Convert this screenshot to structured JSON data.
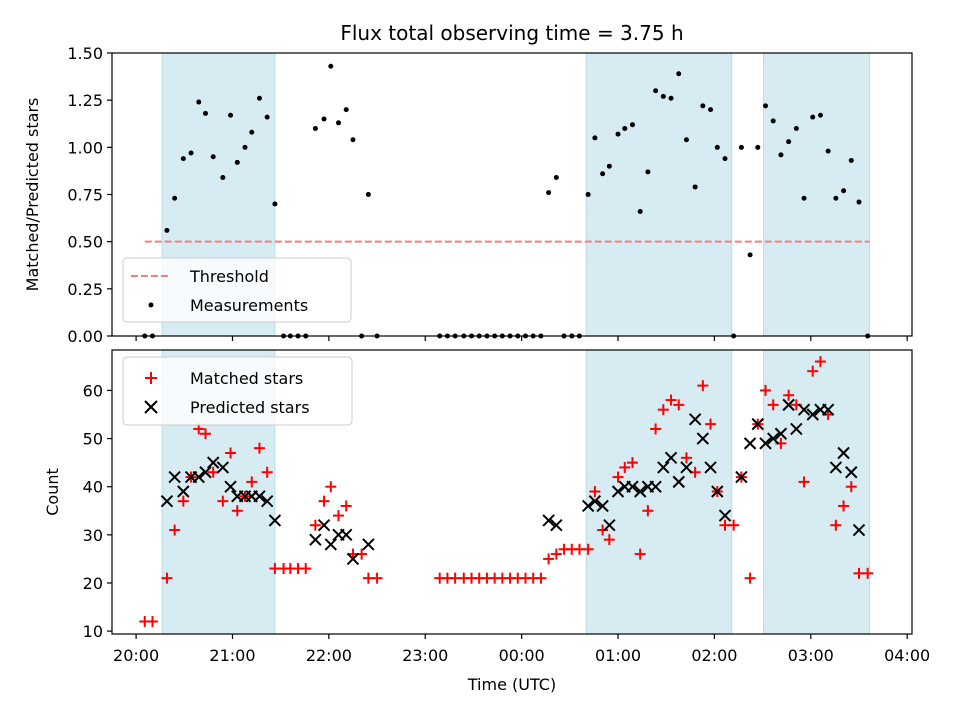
{
  "chart_data": [
    {
      "type": "scatter",
      "title": "Flux total observing time = 3.75 h",
      "xlabel": "",
      "ylabel": "Matched/Predicted stars",
      "ylim": [
        0,
        1.5
      ],
      "yticks": [
        0,
        0.25,
        0.5,
        0.75,
        1.0,
        1.25,
        1.5
      ],
      "ytick_labels": [
        "0.00",
        "0.25",
        "0.50",
        "0.75",
        "1.00",
        "1.25",
        "1.50"
      ],
      "x_unit": "hours since 20:00 UTC",
      "xlim": [
        -0.25,
        8.05
      ],
      "xticks": [
        0,
        1,
        2,
        3,
        4,
        5,
        6,
        7,
        8
      ],
      "grid": false,
      "legend_position": "lower-left",
      "shaded_intervals": [
        [
          0.27,
          1.44
        ],
        [
          4.67,
          6.18
        ],
        [
          6.51,
          7.61
        ]
      ],
      "threshold": {
        "name": "Threshold",
        "value": 0.5,
        "x_range": [
          0.09,
          7.61
        ],
        "color": "#f08080"
      },
      "series": [
        {
          "name": "Measurements",
          "color": "#000000",
          "points": [
            [
              0.09,
              0.0
            ],
            [
              0.17,
              0.0
            ],
            [
              0.32,
              0.56
            ],
            [
              0.4,
              0.73
            ],
            [
              0.49,
              0.94
            ],
            [
              0.57,
              0.97
            ],
            [
              0.65,
              1.24
            ],
            [
              0.72,
              1.18
            ],
            [
              0.8,
              0.95
            ],
            [
              0.9,
              0.84
            ],
            [
              0.98,
              1.17
            ],
            [
              1.05,
              0.92
            ],
            [
              1.13,
              1.0
            ],
            [
              1.2,
              1.08
            ],
            [
              1.28,
              1.26
            ],
            [
              1.36,
              1.16
            ],
            [
              1.44,
              0.7
            ],
            [
              1.53,
              0.0
            ],
            [
              1.6,
              0.0
            ],
            [
              1.68,
              0.0
            ],
            [
              1.76,
              0.0
            ],
            [
              1.86,
              1.1
            ],
            [
              1.95,
              1.15
            ],
            [
              2.02,
              1.43
            ],
            [
              2.1,
              1.13
            ],
            [
              2.18,
              1.2
            ],
            [
              2.25,
              1.04
            ],
            [
              2.34,
              0.0
            ],
            [
              2.41,
              0.75
            ],
            [
              2.5,
              0.0
            ],
            [
              3.15,
              0.0
            ],
            [
              3.23,
              0.0
            ],
            [
              3.31,
              0.0
            ],
            [
              3.4,
              0.0
            ],
            [
              3.48,
              0.0
            ],
            [
              3.56,
              0.0
            ],
            [
              3.64,
              0.0
            ],
            [
              3.72,
              0.0
            ],
            [
              3.8,
              0.0
            ],
            [
              3.88,
              0.0
            ],
            [
              3.96,
              0.0
            ],
            [
              4.04,
              0.0
            ],
            [
              4.12,
              0.0
            ],
            [
              4.2,
              0.0
            ],
            [
              4.28,
              0.76
            ],
            [
              4.36,
              0.84
            ],
            [
              4.44,
              0.0
            ],
            [
              4.52,
              0.0
            ],
            [
              4.6,
              0.0
            ],
            [
              4.69,
              0.75
            ],
            [
              4.76,
              1.05
            ],
            [
              4.84,
              0.86
            ],
            [
              4.91,
              0.9
            ],
            [
              5.0,
              1.07
            ],
            [
              5.07,
              1.1
            ],
            [
              5.15,
              1.12
            ],
            [
              5.23,
              0.66
            ],
            [
              5.31,
              0.87
            ],
            [
              5.39,
              1.3
            ],
            [
              5.47,
              1.27
            ],
            [
              5.55,
              1.26
            ],
            [
              5.63,
              1.39
            ],
            [
              5.71,
              1.04
            ],
            [
              5.8,
              0.79
            ],
            [
              5.88,
              1.22
            ],
            [
              5.96,
              1.2
            ],
            [
              6.03,
              1.0
            ],
            [
              6.11,
              0.94
            ],
            [
              6.2,
              0.0
            ],
            [
              6.28,
              1.0
            ],
            [
              6.37,
              0.43
            ],
            [
              6.45,
              1.0
            ],
            [
              6.53,
              1.22
            ],
            [
              6.61,
              1.14
            ],
            [
              6.69,
              0.96
            ],
            [
              6.77,
              1.03
            ],
            [
              6.85,
              1.1
            ],
            [
              6.93,
              0.73
            ],
            [
              7.02,
              1.16
            ],
            [
              7.1,
              1.17
            ],
            [
              7.18,
              0.98
            ],
            [
              7.26,
              0.73
            ],
            [
              7.34,
              0.77
            ],
            [
              7.42,
              0.93
            ],
            [
              7.5,
              0.71
            ],
            [
              7.59,
              0.0
            ]
          ]
        }
      ]
    },
    {
      "type": "scatter",
      "title": "",
      "xlabel": "Time (UTC)",
      "ylabel": "Count",
      "ylim": [
        9.4,
        68.4
      ],
      "yticks": [
        10,
        20,
        30,
        40,
        50,
        60
      ],
      "ytick_labels": [
        "10",
        "20",
        "30",
        "40",
        "50",
        "60"
      ],
      "x_unit": "hours since 20:00 UTC",
      "xlim": [
        -0.25,
        8.05
      ],
      "xticks": [
        0,
        1,
        2,
        3,
        4,
        5,
        6,
        7,
        8
      ],
      "xtick_labels": [
        "20:00",
        "21:00",
        "22:00",
        "23:00",
        "00:00",
        "01:00",
        "02:00",
        "03:00",
        "04:00"
      ],
      "grid": false,
      "legend_position": "upper-left",
      "shaded_intervals": [
        [
          0.27,
          1.44
        ],
        [
          4.67,
          6.18
        ],
        [
          6.51,
          7.61
        ]
      ],
      "series": [
        {
          "name": "Matched stars",
          "marker": "plus",
          "color": "#ff0000",
          "points": [
            [
              0.09,
              12
            ],
            [
              0.17,
              12
            ],
            [
              0.32,
              21
            ],
            [
              0.4,
              31
            ],
            [
              0.49,
              37
            ],
            [
              0.57,
              42
            ],
            [
              0.65,
              52
            ],
            [
              0.72,
              51
            ],
            [
              0.8,
              43
            ],
            [
              0.9,
              37
            ],
            [
              0.98,
              47
            ],
            [
              1.05,
              35
            ],
            [
              1.13,
              38
            ],
            [
              1.2,
              41
            ],
            [
              1.28,
              48
            ],
            [
              1.36,
              43
            ],
            [
              1.44,
              23
            ],
            [
              1.53,
              23
            ],
            [
              1.6,
              23
            ],
            [
              1.68,
              23
            ],
            [
              1.76,
              23
            ],
            [
              1.86,
              32
            ],
            [
              1.95,
              37
            ],
            [
              2.02,
              40
            ],
            [
              2.1,
              34
            ],
            [
              2.18,
              36
            ],
            [
              2.25,
              26
            ],
            [
              2.34,
              26
            ],
            [
              2.41,
              21
            ],
            [
              2.5,
              21
            ],
            [
              3.15,
              21
            ],
            [
              3.23,
              21
            ],
            [
              3.31,
              21
            ],
            [
              3.4,
              21
            ],
            [
              3.48,
              21
            ],
            [
              3.56,
              21
            ],
            [
              3.64,
              21
            ],
            [
              3.72,
              21
            ],
            [
              3.8,
              21
            ],
            [
              3.88,
              21
            ],
            [
              3.96,
              21
            ],
            [
              4.04,
              21
            ],
            [
              4.12,
              21
            ],
            [
              4.2,
              21
            ],
            [
              4.28,
              25
            ],
            [
              4.36,
              26
            ],
            [
              4.44,
              27
            ],
            [
              4.52,
              27
            ],
            [
              4.6,
              27
            ],
            [
              4.69,
              27
            ],
            [
              4.76,
              39
            ],
            [
              4.84,
              31
            ],
            [
              4.91,
              29
            ],
            [
              5.0,
              42
            ],
            [
              5.07,
              44
            ],
            [
              5.15,
              45
            ],
            [
              5.23,
              26
            ],
            [
              5.31,
              35
            ],
            [
              5.39,
              52
            ],
            [
              5.47,
              56
            ],
            [
              5.55,
              58
            ],
            [
              5.63,
              57
            ],
            [
              5.71,
              46
            ],
            [
              5.8,
              43
            ],
            [
              5.88,
              61
            ],
            [
              5.96,
              53
            ],
            [
              6.03,
              39
            ],
            [
              6.11,
              32
            ],
            [
              6.2,
              32
            ],
            [
              6.28,
              42
            ],
            [
              6.37,
              21
            ],
            [
              6.45,
              53
            ],
            [
              6.53,
              60
            ],
            [
              6.61,
              57
            ],
            [
              6.69,
              49
            ],
            [
              6.77,
              59
            ],
            [
              6.85,
              57
            ],
            [
              6.93,
              41
            ],
            [
              7.02,
              64
            ],
            [
              7.1,
              66
            ],
            [
              7.18,
              55
            ],
            [
              7.26,
              32
            ],
            [
              7.34,
              36
            ],
            [
              7.42,
              40
            ],
            [
              7.5,
              22
            ],
            [
              7.59,
              22
            ]
          ]
        },
        {
          "name": "Predicted stars",
          "marker": "x",
          "color": "#000000",
          "points": [
            [
              0.32,
              37
            ],
            [
              0.4,
              42
            ],
            [
              0.49,
              39
            ],
            [
              0.57,
              42
            ],
            [
              0.65,
              42
            ],
            [
              0.72,
              43
            ],
            [
              0.8,
              45
            ],
            [
              0.9,
              44
            ],
            [
              0.98,
              40
            ],
            [
              1.05,
              38
            ],
            [
              1.13,
              38
            ],
            [
              1.2,
              38
            ],
            [
              1.28,
              38
            ],
            [
              1.36,
              37
            ],
            [
              1.44,
              33
            ],
            [
              1.86,
              29
            ],
            [
              1.95,
              32
            ],
            [
              2.02,
              28
            ],
            [
              2.1,
              30
            ],
            [
              2.18,
              30
            ],
            [
              2.25,
              25
            ],
            [
              2.41,
              28
            ],
            [
              4.28,
              33
            ],
            [
              4.36,
              32
            ],
            [
              4.69,
              36
            ],
            [
              4.76,
              37
            ],
            [
              4.84,
              36
            ],
            [
              4.91,
              32
            ],
            [
              5.0,
              39
            ],
            [
              5.07,
              40
            ],
            [
              5.15,
              40
            ],
            [
              5.23,
              39
            ],
            [
              5.31,
              40
            ],
            [
              5.39,
              40
            ],
            [
              5.47,
              44
            ],
            [
              5.55,
              46
            ],
            [
              5.63,
              41
            ],
            [
              5.71,
              44
            ],
            [
              5.8,
              54
            ],
            [
              5.88,
              50
            ],
            [
              5.96,
              44
            ],
            [
              6.03,
              39
            ],
            [
              6.11,
              34
            ],
            [
              6.28,
              42
            ],
            [
              6.37,
              49
            ],
            [
              6.45,
              53
            ],
            [
              6.53,
              49
            ],
            [
              6.61,
              50
            ],
            [
              6.69,
              51
            ],
            [
              6.77,
              57
            ],
            [
              6.85,
              52
            ],
            [
              6.93,
              56
            ],
            [
              7.02,
              55
            ],
            [
              7.1,
              56
            ],
            [
              7.18,
              56
            ],
            [
              7.26,
              44
            ],
            [
              7.34,
              47
            ],
            [
              7.42,
              43
            ],
            [
              7.5,
              31
            ]
          ]
        }
      ]
    }
  ]
}
